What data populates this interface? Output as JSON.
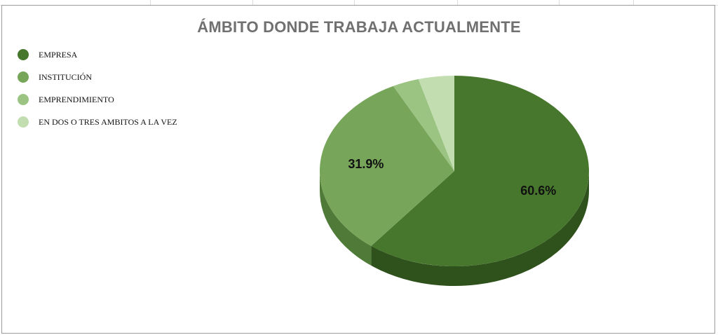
{
  "chart_data": {
    "type": "pie",
    "title": "ÁMBITO DONDE TRABAJA ACTUALMENTE",
    "categories": [
      "EMPRESA",
      "INSTITUCIÓN",
      "EMPRENDIMIENTO",
      "EN DOS O TRES AMBITOS A LA VEZ"
    ],
    "values": [
      60.6,
      31.9,
      3.2,
      4.3
    ],
    "data_labels": [
      "60.6%",
      "31.9%",
      "",
      ""
    ],
    "colors": [
      "#47762d",
      "#77a65a",
      "#9bc483",
      "#c2ddb0"
    ],
    "side_colors": [
      "#2f521c",
      "#4f7a38",
      "#6e9a58",
      "#93b57f"
    ],
    "legend_position": "left",
    "style": "3d"
  }
}
